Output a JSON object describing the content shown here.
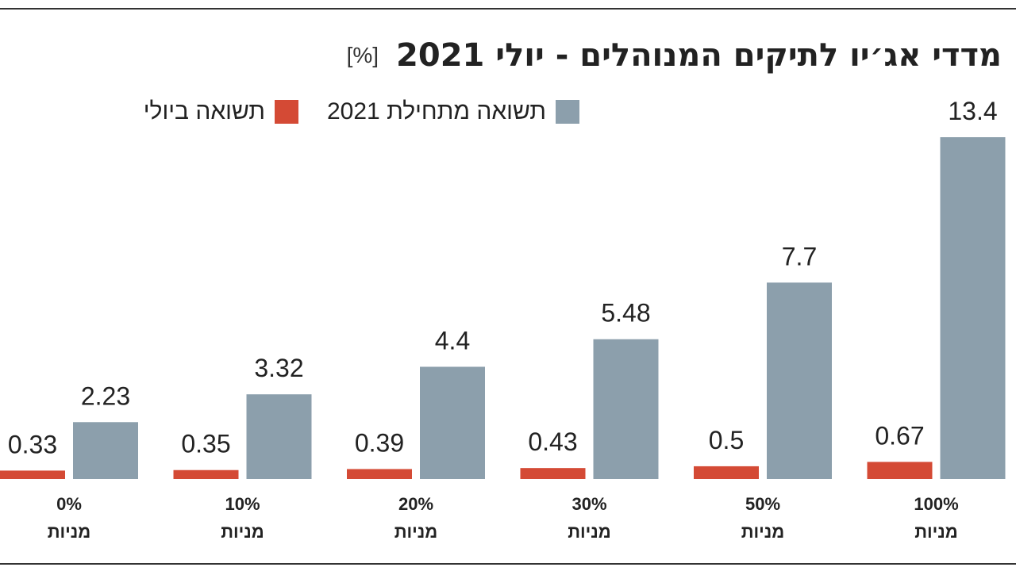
{
  "title": "מדדי אג׳יו לתיקים המנוהלים - יולי 2021",
  "unit": "[%]",
  "colors": {
    "ytd": "#8c9fac",
    "july": "#d44a35"
  },
  "legend": {
    "ytd_label": "תשואה מתחילת 2021",
    "july_label": "תשואה ביולי"
  },
  "chart_data": {
    "type": "bar",
    "title": "מדדי אג׳יו לתיקים המנוהלים - יולי 2021",
    "ylabel": "[%]",
    "categories": [
      {
        "pct": "0%",
        "word": "מניות"
      },
      {
        "pct": "10%",
        "word": "מניות"
      },
      {
        "pct": "20%",
        "word": "מניות"
      },
      {
        "pct": "30%",
        "word": "מניות"
      },
      {
        "pct": "50%",
        "word": "מניות"
      },
      {
        "pct": "100%",
        "word": "מניות"
      }
    ],
    "series": [
      {
        "name": "תשואה ביולי",
        "values": [
          0.33,
          0.35,
          0.39,
          0.43,
          0.5,
          0.67
        ],
        "labels": [
          "0.33",
          "0.35",
          "0.39",
          "0.43",
          "0.5",
          "0.67"
        ]
      },
      {
        "name": "תשואה מתחילת 2021",
        "values": [
          2.23,
          3.32,
          4.4,
          5.48,
          7.7,
          13.4
        ],
        "labels": [
          "2.23",
          "3.32",
          "4.4",
          "5.48",
          "7.7",
          "13.4"
        ]
      }
    ],
    "ylim": [
      0,
      13.4
    ],
    "grid": false,
    "legend_position": "top"
  }
}
